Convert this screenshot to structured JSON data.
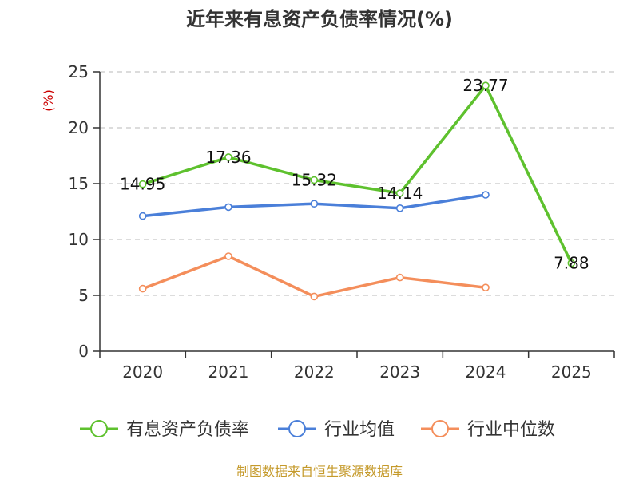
{
  "colors": {
    "series_1": "#5ec12e",
    "series_2": "#4a7fd9",
    "series_3": "#f48e5b",
    "unit": "#cc0000",
    "source": "#c59a2b",
    "grid": "#c8c8c8",
    "axis": "#333333"
  },
  "chart_data": {
    "type": "line",
    "title": "近年来有息资产负债率情况(%)",
    "ylabel": "(%)",
    "xlabel": "",
    "categories": [
      "2020",
      "2021",
      "2022",
      "2023",
      "2024",
      "2025"
    ],
    "ylim": [
      0,
      25
    ],
    "yticks": [
      "0",
      "5",
      "10",
      "15",
      "20",
      "25"
    ],
    "grid": "horizontal dashed",
    "legend_position": "bottom",
    "series": [
      {
        "name": "有息资产负债率",
        "values": [
          14.95,
          17.36,
          15.32,
          14.14,
          23.77,
          7.88
        ],
        "labels": [
          "14.95",
          "17.36",
          "15.32",
          "14.14",
          "23.77",
          "7.88"
        ]
      },
      {
        "name": "行业均值",
        "values": [
          12.1,
          12.9,
          13.2,
          12.8,
          14.0,
          null
        ]
      },
      {
        "name": "行业中位数",
        "values": [
          5.6,
          8.5,
          4.9,
          6.6,
          5.7,
          null
        ]
      }
    ]
  },
  "footer": {
    "source": "制图数据来自恒生聚源数据库"
  }
}
